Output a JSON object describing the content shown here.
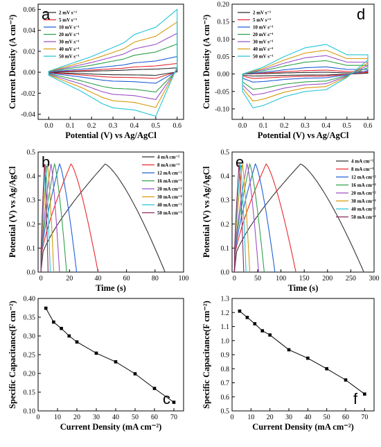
{
  "legends": {
    "cv": [
      "2 mV s⁻¹",
      "5 mV s⁻¹",
      "10 mV s⁻¹",
      "20 mV s⁻¹",
      "30 mV s⁻¹",
      "40 mV s⁻¹",
      "50 mV s⁻¹"
    ],
    "gcd": [
      "4 mA cm⁻²",
      "8 mA cm⁻²",
      "12 mA cm⁻²",
      "16 mA cm⁻²",
      "20 mA cm⁻²",
      "30 mA cm⁻²",
      "40 mA cm⁻²",
      "50 mA cm⁻²"
    ]
  },
  "colors": {
    "cv": [
      "#2b2b2b",
      "#e8272f",
      "#1f5fd6",
      "#2fa04a",
      "#9b4fc6",
      "#d69a0a",
      "#22c4d6"
    ],
    "gcd": [
      "#333333",
      "#e8272f",
      "#1f5fd6",
      "#2fa04a",
      "#9b4fc6",
      "#d69a0a",
      "#22c4d6",
      "#8a2a5c"
    ]
  },
  "chart_data": [
    {
      "panel": "a",
      "type": "line",
      "xlabel": "Potential (V) vs Ag/AgCl",
      "ylabel": "Current Density (A cm⁻²)",
      "xlim": [
        -0.05,
        0.63
      ],
      "ylim": [
        -0.045,
        0.065
      ],
      "xticks": [
        "0.0",
        "0.1",
        "0.2",
        "0.3",
        "0.4",
        "0.5",
        "0.6"
      ],
      "yticks": [
        "-0.04",
        "-0.02",
        "0.00",
        "0.02",
        "0.04",
        "0.06"
      ],
      "curve_type": "cv-a",
      "series": [
        {
          "name": "2 mV s⁻¹",
          "scale": 0.07
        },
        {
          "name": "5 mV s⁻¹",
          "scale": 0.14
        },
        {
          "name": "10 mV s⁻¹",
          "scale": 0.25
        },
        {
          "name": "20 mV s⁻¹",
          "scale": 0.45
        },
        {
          "name": "30 mV s⁻¹",
          "scale": 0.62
        },
        {
          "name": "40 mV s⁻¹",
          "scale": 0.8
        },
        {
          "name": "50 mV s⁻¹",
          "scale": 1.0
        }
      ],
      "upper_envelope_50": {
        "x": [
          0.0,
          0.2,
          0.35,
          0.4,
          0.5,
          0.6
        ],
        "y": [
          0.001,
          0.015,
          0.028,
          0.036,
          0.043,
          0.06
        ]
      },
      "lower_envelope_50": {
        "x": [
          0.0,
          0.15,
          0.25,
          0.3,
          0.4,
          0.5,
          0.6
        ],
        "y": [
          -0.003,
          -0.018,
          -0.03,
          -0.034,
          -0.036,
          -0.042,
          0.005
        ]
      }
    },
    {
      "panel": "b",
      "type": "line",
      "xlabel": "Time (s)",
      "ylabel": "Potential (V) vs Ag/AgCl",
      "xlim": [
        -2,
        100
      ],
      "ylim": [
        0,
        0.5
      ],
      "xticks": [
        "0",
        "20",
        "40",
        "60",
        "80",
        "100"
      ],
      "yticks": [
        "0.0",
        "0.1",
        "0.2",
        "0.3",
        "0.4",
        "0.5"
      ],
      "vmax": 0.45,
      "series": [
        {
          "name": "4 mA cm⁻²",
          "t_peak": 45,
          "t_end": 87
        },
        {
          "name": "8 mA cm⁻²",
          "t_peak": 21,
          "t_end": 40
        },
        {
          "name": "12 mA cm⁻²",
          "t_peak": 13,
          "t_end": 25
        },
        {
          "name": "16 mA cm⁻²",
          "t_peak": 9.5,
          "t_end": 18
        },
        {
          "name": "20 mA cm⁻²",
          "t_peak": 7,
          "t_end": 13
        },
        {
          "name": "30 mA cm⁻²",
          "t_peak": 4.5,
          "t_end": 9
        },
        {
          "name": "40 mA cm⁻²",
          "t_peak": 3.3,
          "t_end": 6.5
        },
        {
          "name": "50 mA cm⁻²",
          "t_peak": 2.5,
          "t_end": 5
        }
      ]
    },
    {
      "panel": "c",
      "type": "scatter",
      "xlabel": "Current Density (mA cm⁻²)",
      "ylabel": "Specific Capacitance(F cm⁻²)",
      "xlim": [
        0,
        75
      ],
      "ylim": [
        0.1,
        0.4
      ],
      "xticks": [
        "0",
        "10",
        "20",
        "30",
        "40",
        "50",
        "60",
        "70"
      ],
      "yticks": [
        "0.10",
        "0.15",
        "0.20",
        "0.25",
        "0.30",
        "0.35",
        "0.40"
      ],
      "x": [
        4,
        8,
        12,
        16,
        20,
        30,
        40,
        50,
        60,
        70
      ],
      "y": [
        0.374,
        0.337,
        0.32,
        0.3,
        0.284,
        0.254,
        0.231,
        0.199,
        0.16,
        0.123
      ]
    },
    {
      "panel": "d",
      "type": "line",
      "xlabel": "Potential (V) vs Ag/AgCl",
      "ylabel": "Current Density (A cm⁻²)",
      "xlim": [
        -0.05,
        0.63
      ],
      "ylim": [
        -0.13,
        0.2
      ],
      "xticks": [
        "0.0",
        "0.1",
        "0.2",
        "0.3",
        "0.4",
        "0.5",
        "0.6"
      ],
      "yticks": [
        "-0.10",
        "-0.05",
        "0.00",
        "0.05",
        "0.10",
        "0.15",
        "0.20"
      ],
      "curve_type": "cv-d",
      "series": [
        {
          "name": "2 mV s⁻¹",
          "scale": 0.06
        },
        {
          "name": "5 mV s⁻¹",
          "scale": 0.13
        },
        {
          "name": "10 mV s⁻¹",
          "scale": 0.24
        },
        {
          "name": "20 mV s⁻¹",
          "scale": 0.45
        },
        {
          "name": "30 mV s⁻¹",
          "scale": 0.62
        },
        {
          "name": "40 mV s⁻¹",
          "scale": 0.8
        },
        {
          "name": "50 mV s⁻¹",
          "scale": 1.0
        }
      ],
      "upper_envelope_50": {
        "x": [
          0.0,
          0.1,
          0.2,
          0.3,
          0.4,
          0.5,
          0.6
        ],
        "y": [
          0.0,
          0.02,
          0.05,
          0.075,
          0.085,
          0.055,
          0.055
        ]
      },
      "lower_envelope_50": {
        "x": [
          0.0,
          0.05,
          0.1,
          0.2,
          0.3,
          0.4,
          0.5,
          0.6
        ],
        "y": [
          -0.05,
          -0.097,
          -0.09,
          -0.065,
          -0.05,
          -0.045,
          -0.01,
          0.04
        ]
      }
    },
    {
      "panel": "e",
      "type": "line",
      "xlabel": "Time (s)",
      "ylabel": "Potential (V) vs Ag/AgCl",
      "xlim": [
        -5,
        300
      ],
      "ylim": [
        0,
        0.5
      ],
      "xticks": [
        "0",
        "50",
        "100",
        "150",
        "200",
        "250",
        "300"
      ],
      "yticks": [
        "0.0",
        "0.1",
        "0.2",
        "0.3",
        "0.4",
        "0.5"
      ],
      "vmax": 0.45,
      "series": [
        {
          "name": "4 mA cm⁻²",
          "t_peak": 142,
          "t_end": 278
        },
        {
          "name": "8 mA cm⁻²",
          "t_peak": 68,
          "t_end": 132
        },
        {
          "name": "12 mA cm⁻²",
          "t_peak": 45,
          "t_end": 87
        },
        {
          "name": "16 mA cm⁻²",
          "t_peak": 33,
          "t_end": 64
        },
        {
          "name": "20 mA cm⁻²",
          "t_peak": 27,
          "t_end": 52
        },
        {
          "name": "30 mA cm⁻²",
          "t_peak": 17,
          "t_end": 33
        },
        {
          "name": "40 mA cm⁻²",
          "t_peak": 13,
          "t_end": 25
        },
        {
          "name": "50 mA cm⁻²",
          "t_peak": 10,
          "t_end": 20
        }
      ]
    },
    {
      "panel": "f",
      "type": "scatter",
      "xlabel": "Current Density (mA cm⁻²)",
      "ylabel": "Specific Capacitance(F cm⁻²)",
      "xlim": [
        0,
        75
      ],
      "ylim": [
        0.5,
        1.3
      ],
      "xticks": [
        "0",
        "10",
        "20",
        "30",
        "40",
        "50",
        "60",
        "70"
      ],
      "yticks": [
        "0.5",
        "0.6",
        "0.7",
        "0.8",
        "0.9",
        "1.0",
        "1.1",
        "1.2",
        "1.3"
      ],
      "x": [
        4,
        8,
        12,
        16,
        20,
        30,
        40,
        50,
        60,
        70
      ],
      "y": [
        1.21,
        1.165,
        1.12,
        1.07,
        1.04,
        0.935,
        0.875,
        0.8,
        0.72,
        0.62
      ]
    }
  ]
}
